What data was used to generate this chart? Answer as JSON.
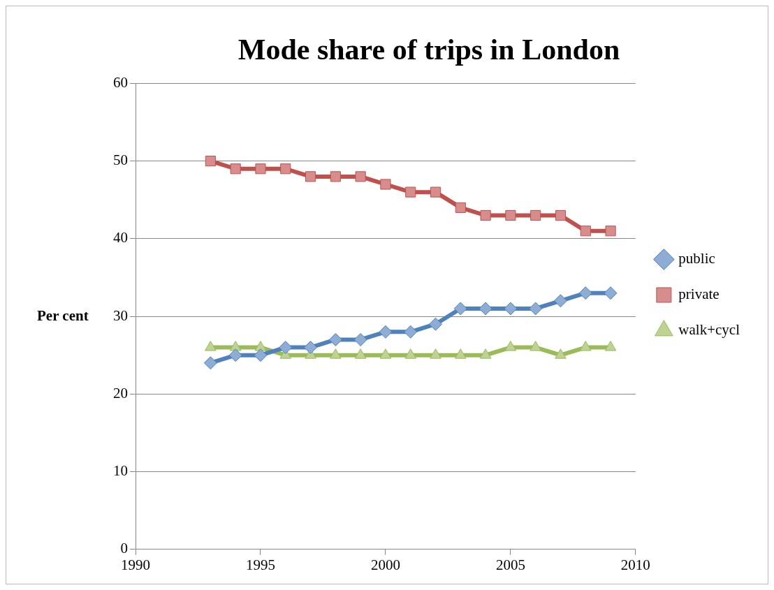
{
  "chart_data": {
    "type": "line",
    "title": "Mode share of trips in London",
    "ylabel": "Per cent",
    "x": [
      1993,
      1994,
      1995,
      1996,
      1997,
      1998,
      1999,
      2000,
      2001,
      2002,
      2003,
      2004,
      2005,
      2006,
      2007,
      2008,
      2009
    ],
    "series": [
      {
        "name": "public",
        "color": "#4f81bd",
        "marker": "diamond",
        "values": [
          24,
          25,
          25,
          26,
          26,
          27,
          27,
          28,
          28,
          29,
          31,
          31,
          31,
          31,
          32,
          33,
          33
        ]
      },
      {
        "name": "private",
        "color": "#c0504d",
        "marker": "square",
        "values": [
          50,
          49,
          49,
          49,
          48,
          48,
          48,
          47,
          46,
          46,
          44,
          43,
          43,
          43,
          43,
          41,
          41
        ]
      },
      {
        "name": "walk+cycl",
        "color": "#9bbb59",
        "marker": "triangle",
        "values": [
          26,
          26,
          26,
          25,
          25,
          25,
          25,
          25,
          25,
          25,
          25,
          25,
          26,
          26,
          25,
          26,
          26
        ]
      }
    ],
    "xlim": [
      1990,
      2010
    ],
    "xticks": [
      1990,
      1995,
      2000,
      2005,
      2010
    ],
    "ylim": [
      0,
      60
    ],
    "yticks": [
      0,
      10,
      20,
      30,
      40,
      50,
      60
    ],
    "grid": "y",
    "legend": "right"
  }
}
